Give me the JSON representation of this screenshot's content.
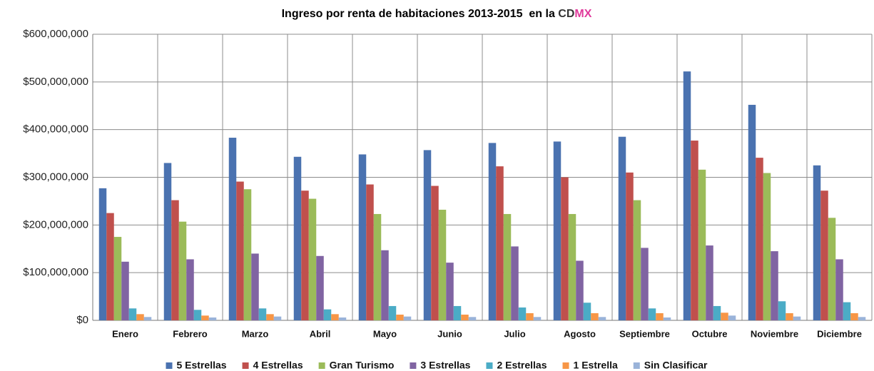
{
  "chart_data": {
    "type": "bar",
    "title": [
      "Ingreso por renta de habitaciones 2013-2015  en la ",
      "CD",
      "MX"
    ],
    "title_colors": [
      "#000000",
      "#333333",
      "#e0399b"
    ],
    "categories": [
      "Enero",
      "Febrero",
      "Marzo",
      "Abril",
      "Mayo",
      "Junio",
      "Julio",
      "Agosto",
      "Septiembre",
      "Octubre",
      "Noviembre",
      "Diciembre"
    ],
    "series": [
      {
        "name": "5 Estrellas",
        "color": "#4a72b0",
        "values": [
          277000000,
          330000000,
          383000000,
          343000000,
          348000000,
          357000000,
          372000000,
          375000000,
          385000000,
          522000000,
          452000000,
          325000000
        ]
      },
      {
        "name": "4 Estrellas",
        "color": "#c0504d",
        "values": [
          225000000,
          252000000,
          291000000,
          272000000,
          285000000,
          282000000,
          323000000,
          300000000,
          310000000,
          377000000,
          341000000,
          272000000
        ]
      },
      {
        "name": "Gran Turismo",
        "color": "#9bbb59",
        "values": [
          175000000,
          207000000,
          275000000,
          255000000,
          223000000,
          232000000,
          223000000,
          223000000,
          252000000,
          316000000,
          309000000,
          215000000
        ]
      },
      {
        "name": "3 Estrellas",
        "color": "#8064a2",
        "values": [
          123000000,
          128000000,
          140000000,
          135000000,
          147000000,
          121000000,
          155000000,
          125000000,
          152000000,
          157000000,
          145000000,
          128000000
        ]
      },
      {
        "name": "2 Estrellas",
        "color": "#4bacc6",
        "values": [
          25000000,
          22000000,
          25000000,
          23000000,
          30000000,
          30000000,
          27000000,
          37000000,
          25000000,
          30000000,
          40000000,
          38000000
        ]
      },
      {
        "name": "1 Estrella",
        "color": "#f79646",
        "values": [
          13000000,
          10000000,
          13000000,
          13000000,
          12000000,
          12000000,
          15000000,
          15000000,
          15000000,
          16000000,
          15000000,
          15000000
        ]
      },
      {
        "name": "Sin Clasificar",
        "color": "#9ab3d9",
        "values": [
          7000000,
          6000000,
          8000000,
          6000000,
          8000000,
          7000000,
          7000000,
          7000000,
          6000000,
          10000000,
          8000000,
          7000000
        ]
      }
    ],
    "ylim": [
      0,
      600000000
    ],
    "yticks": [
      {
        "value": 0,
        "label": "$0"
      },
      {
        "value": 100000000,
        "label": "$100,000,000"
      },
      {
        "value": 200000000,
        "label": "$200,000,000"
      },
      {
        "value": 300000000,
        "label": "$300,000,000"
      },
      {
        "value": 400000000,
        "label": "$400,000,000"
      },
      {
        "value": 500000000,
        "label": "$500,000,000"
      },
      {
        "value": 600000000,
        "label": "$600,000,000"
      }
    ],
    "grid": true,
    "legend": "bottom"
  }
}
